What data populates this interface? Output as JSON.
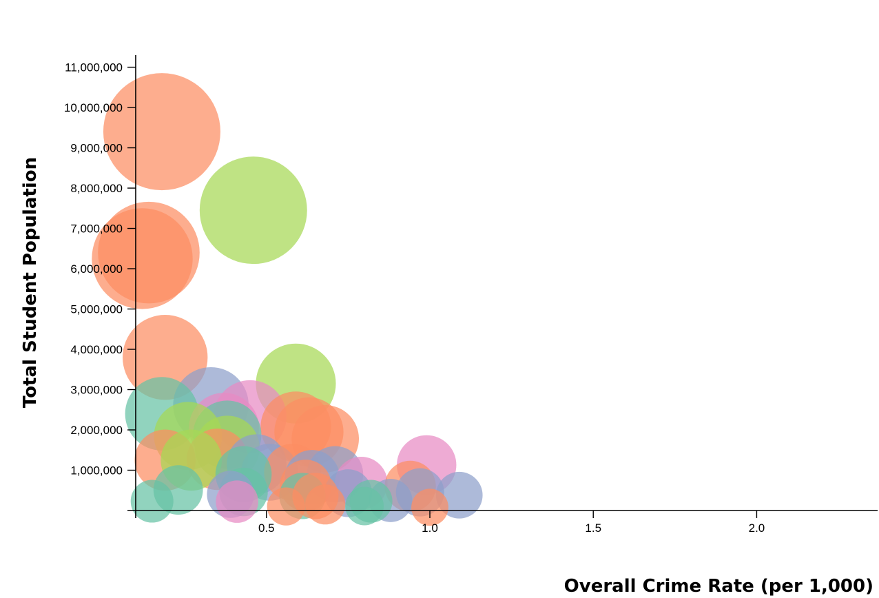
{
  "chart_data": {
    "type": "scatter",
    "title": "",
    "xlabel": "Overall Crime Rate (per 1,000)",
    "ylabel": "Total Student Population",
    "xlim": [
      0.1,
      2.37
    ],
    "ylim": [
      0,
      11300000
    ],
    "x_ticks": [
      0.5,
      1.0,
      1.5,
      2.0
    ],
    "x_tick_labels": [
      "0.5",
      "1.0",
      "1.5",
      "2.0"
    ],
    "y_ticks": [
      1000000,
      2000000,
      3000000,
      4000000,
      5000000,
      6000000,
      7000000,
      8000000,
      9000000,
      10000000,
      11000000
    ],
    "y_tick_labels": [
      "1,000,000",
      "2,000,000",
      "3,000,000",
      "4,000,000",
      "5,000,000",
      "6,000,000",
      "7,000,000",
      "8,000,000",
      "9,000,000",
      "10,000,000",
      "11,000,000"
    ],
    "grid": false,
    "legend": "none",
    "bubble_size": "proportional to total student population",
    "colors": {
      "green_teal": "#66c2a5",
      "orange": "#fc8d62",
      "blue": "#8da0cb",
      "pink": "#e78ac3",
      "lime": "#a6d854"
    },
    "points": [
      {
        "x": 0.18,
        "y": 9400000,
        "color": "#fc8d62"
      },
      {
        "x": 0.46,
        "y": 7450000,
        "color": "#a6d854"
      },
      {
        "x": 0.14,
        "y": 6400000,
        "color": "#fc8d62"
      },
      {
        "x": 0.12,
        "y": 6250000,
        "color": "#fc8d62"
      },
      {
        "x": 0.19,
        "y": 3800000,
        "color": "#fc8d62"
      },
      {
        "x": 0.59,
        "y": 3150000,
        "color": "#a6d854"
      },
      {
        "x": 0.33,
        "y": 2620000,
        "color": "#8da0cb"
      },
      {
        "x": 0.18,
        "y": 2400000,
        "color": "#66c2a5"
      },
      {
        "x": 0.45,
        "y": 2330000,
        "color": "#e78ac3"
      },
      {
        "x": 0.59,
        "y": 2080000,
        "color": "#fc8d62"
      },
      {
        "x": 0.37,
        "y": 2050000,
        "color": "#e78ac3"
      },
      {
        "x": 0.63,
        "y": 1950000,
        "color": "#fc8d62"
      },
      {
        "x": 0.38,
        "y": 1880000,
        "color": "#66c2a5"
      },
      {
        "x": 0.26,
        "y": 1850000,
        "color": "#a6d854"
      },
      {
        "x": 0.68,
        "y": 1780000,
        "color": "#fc8d62"
      },
      {
        "x": 0.38,
        "y": 1550000,
        "color": "#a6d854"
      },
      {
        "x": 0.19,
        "y": 1250000,
        "color": "#fc8d62"
      },
      {
        "x": 0.27,
        "y": 1250000,
        "color": "#a6d854"
      },
      {
        "x": 0.35,
        "y": 1270000,
        "color": "#fc8d62"
      },
      {
        "x": 0.99,
        "y": 1130000,
        "color": "#e78ac3"
      },
      {
        "x": 0.47,
        "y": 1150000,
        "color": "#8da0cb"
      },
      {
        "x": 0.51,
        "y": 950000,
        "color": "#8da0cb"
      },
      {
        "x": 0.43,
        "y": 900000,
        "color": "#66c2a5"
      },
      {
        "x": 0.58,
        "y": 950000,
        "color": "#fc8d62"
      },
      {
        "x": 0.71,
        "y": 900000,
        "color": "#8da0cb"
      },
      {
        "x": 0.64,
        "y": 820000,
        "color": "#8da0cb"
      },
      {
        "x": 0.79,
        "y": 680000,
        "color": "#e78ac3"
      },
      {
        "x": 0.62,
        "y": 620000,
        "color": "#fc8d62"
      },
      {
        "x": 0.94,
        "y": 600000,
        "color": "#fc8d62"
      },
      {
        "x": 0.97,
        "y": 450000,
        "color": "#8da0cb"
      },
      {
        "x": 0.23,
        "y": 510000,
        "color": "#66c2a5"
      },
      {
        "x": 0.43,
        "y": 460000,
        "color": "#66c2a5"
      },
      {
        "x": 0.39,
        "y": 400000,
        "color": "#8da0cb"
      },
      {
        "x": 0.75,
        "y": 430000,
        "color": "#8da0cb"
      },
      {
        "x": 1.09,
        "y": 380000,
        "color": "#8da0cb"
      },
      {
        "x": 0.61,
        "y": 360000,
        "color": "#66c2a5"
      },
      {
        "x": 0.65,
        "y": 360000,
        "color": "#fc8d62"
      },
      {
        "x": 0.88,
        "y": 250000,
        "color": "#8da0cb"
      },
      {
        "x": 0.82,
        "y": 230000,
        "color": "#66c2a5"
      },
      {
        "x": 0.15,
        "y": 230000,
        "color": "#66c2a5"
      },
      {
        "x": 0.41,
        "y": 220000,
        "color": "#e78ac3"
      },
      {
        "x": 0.68,
        "y": 150000,
        "color": "#fc8d62"
      },
      {
        "x": 0.8,
        "y": 110000,
        "color": "#66c2a5"
      },
      {
        "x": 0.56,
        "y": 100000,
        "color": "#fc8d62"
      },
      {
        "x": 1.0,
        "y": 80000,
        "color": "#fc8d62"
      }
    ]
  }
}
